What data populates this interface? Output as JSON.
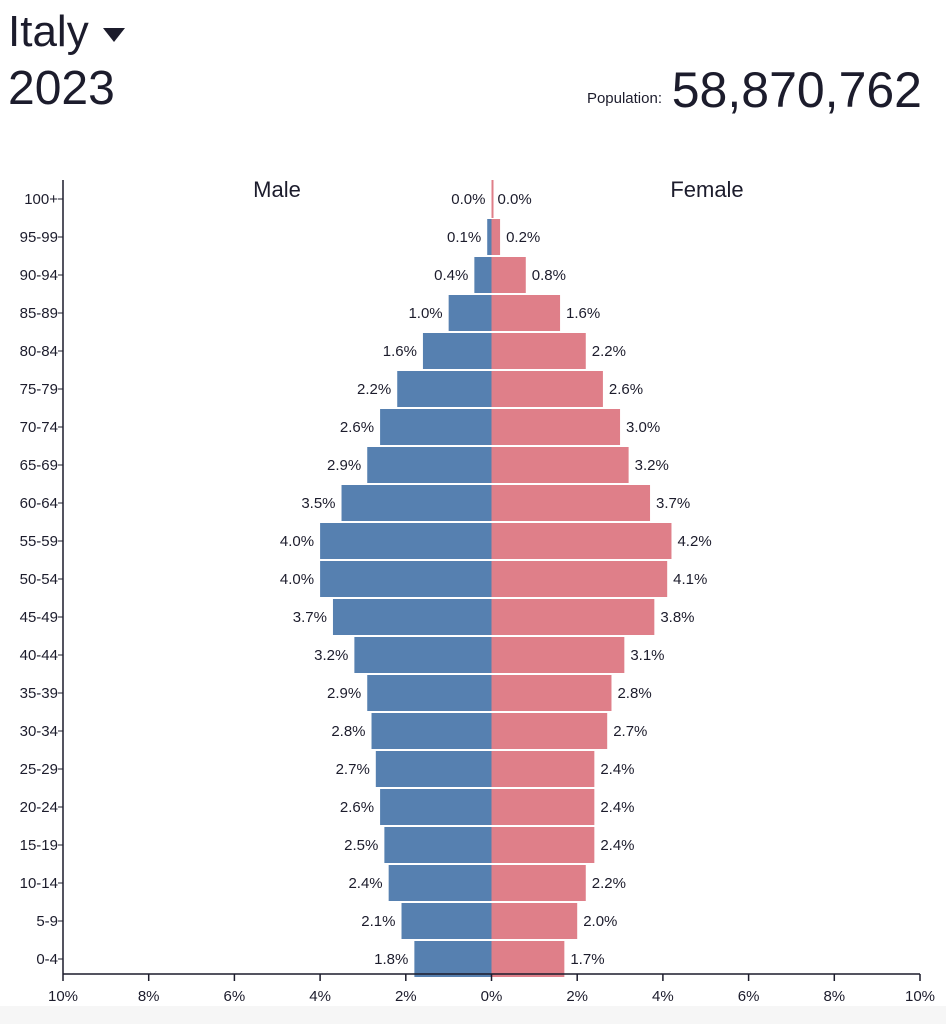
{
  "header": {
    "country": "Italy",
    "year": "2023",
    "population_label": "Population:",
    "population_value": "58,870,762"
  },
  "colors": {
    "male": "#5680b0",
    "female": "#df7f89",
    "text": "#1c1c2c",
    "axis": "#1c1c2c",
    "center_line": "#df7f89"
  },
  "icons": {
    "country_dropdown": "caret-down-icon"
  },
  "chart_data": {
    "type": "bar",
    "orientation": "horizontal-population-pyramid",
    "categories": [
      "100+",
      "95-99",
      "90-94",
      "85-89",
      "80-84",
      "75-79",
      "70-74",
      "65-69",
      "60-64",
      "55-59",
      "50-54",
      "45-49",
      "40-44",
      "35-39",
      "30-34",
      "25-29",
      "20-24",
      "15-19",
      "10-14",
      "5-9",
      "0-4"
    ],
    "series": [
      {
        "name": "Male",
        "values": [
          0.0,
          0.1,
          0.4,
          1.0,
          1.6,
          2.2,
          2.6,
          2.9,
          3.5,
          4.0,
          4.0,
          3.7,
          3.2,
          2.9,
          2.8,
          2.7,
          2.6,
          2.5,
          2.4,
          2.1,
          1.8
        ],
        "labels": [
          "0.0%",
          "0.1%",
          "0.4%",
          "1.0%",
          "1.6%",
          "2.2%",
          "2.6%",
          "2.9%",
          "3.5%",
          "4.0%",
          "4.0%",
          "3.7%",
          "3.2%",
          "2.9%",
          "2.8%",
          "2.7%",
          "2.6%",
          "2.5%",
          "2.4%",
          "2.1%",
          "1.8%"
        ]
      },
      {
        "name": "Female",
        "values": [
          0.0,
          0.2,
          0.8,
          1.6,
          2.2,
          2.6,
          3.0,
          3.2,
          3.7,
          4.2,
          4.1,
          3.8,
          3.1,
          2.8,
          2.7,
          2.4,
          2.4,
          2.4,
          2.2,
          2.0,
          1.7
        ],
        "labels": [
          "0.0%",
          "0.2%",
          "0.8%",
          "1.6%",
          "2.2%",
          "2.6%",
          "3.0%",
          "3.2%",
          "3.7%",
          "4.2%",
          "4.1%",
          "3.8%",
          "3.1%",
          "2.8%",
          "2.7%",
          "2.4%",
          "2.4%",
          "2.4%",
          "2.2%",
          "2.0%",
          "1.7%"
        ]
      }
    ],
    "xlim": [
      -10,
      10
    ],
    "x_ticks": [
      "10%",
      "8%",
      "6%",
      "4%",
      "2%",
      "0%",
      "2%",
      "4%",
      "6%",
      "8%",
      "10%"
    ],
    "x_tick_values": [
      -10,
      -8,
      -6,
      -4,
      -2,
      0,
      2,
      4,
      6,
      8,
      10
    ],
    "grid": false,
    "legend": "inline-top"
  }
}
